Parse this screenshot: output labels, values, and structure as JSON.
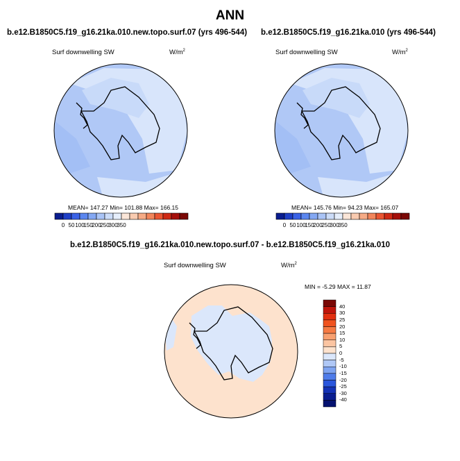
{
  "main_title": "ANN",
  "panels": [
    {
      "title": "b.e12.B1850C5.f19_g16.21ka.010.new.topo.surf.07 (yrs 496-544)",
      "variable": "Surf downwelling SW",
      "units": "W/m",
      "units_sup": "2",
      "stats": "MEAN= 147.27  Min= 101.88  Max= 166.15"
    },
    {
      "title": "b.e12.B1850C5.f19_g16.21ka.010 (yrs 496-544)",
      "variable": "Surf downwelling SW",
      "units": "W/m",
      "units_sup": "2",
      "stats": "MEAN= 145.76  Min=  94.23  Max= 165.07"
    },
    {
      "title": "b.e12.B1850C5.f19_g16.21ka.010.new.topo.surf.07 - b.e12.B1850C5.f19_g16.21ka.010",
      "variable": "Surf downwelling SW",
      "units": "W/m",
      "units_sup": "2",
      "stats": "MIN =  -5.29 MAX =  11.87"
    }
  ],
  "colorbar_abs": {
    "ticks": [
      "0",
      "50",
      "100",
      "150",
      "200",
      "250",
      "300",
      "350"
    ],
    "colors": [
      "#0a1d8f",
      "#1f3fc7",
      "#3a62e6",
      "#5b86ef",
      "#84a8f3",
      "#aac4f6",
      "#ccdcf8",
      "#e6eefb",
      "#fbe6d8",
      "#f9cbb0",
      "#f6ab86",
      "#f2855b",
      "#ea5532",
      "#cf2a15",
      "#a50f0a",
      "#7a0805"
    ]
  },
  "colorbar_diff": {
    "labels": [
      "40",
      "30",
      "25",
      "20",
      "15",
      "10",
      "5",
      "0",
      "-5",
      "-10",
      "-15",
      "-20",
      "-25",
      "-30",
      "-40"
    ],
    "colors": [
      "#7a0805",
      "#c0150b",
      "#e23010",
      "#f0531f",
      "#f67a43",
      "#f8a070",
      "#fbc5a2",
      "#fde2cd",
      "#dbe7fb",
      "#b0c8f6",
      "#7fa4f1",
      "#4f7cea",
      "#2a56dc",
      "#1432b6",
      "#0a1d8f",
      "#061270"
    ]
  },
  "map_colors": {
    "panel_ocean": "#b0c8f6",
    "panel_light": "#d8e5fb",
    "panel_mid": "#c8daf9",
    "diff_ocean": "#fde2cd",
    "diff_land": "#dbe7fb"
  }
}
